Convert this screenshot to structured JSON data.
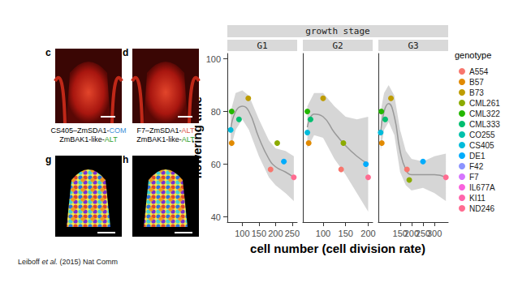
{
  "figure": {
    "panels": [
      {
        "label": "c",
        "caption": [
          [
            {
              "text": "CS405–ZmSDA1-"
            },
            {
              "text": "COM",
              "color": "#3a8fd8"
            }
          ],
          [
            {
              "text": "ZmBAK1-like-"
            },
            {
              "text": "ALT",
              "color": "#2ca02c"
            }
          ]
        ]
      },
      {
        "label": "d",
        "caption": [
          [
            {
              "text": "F7–ZmSDA1-"
            },
            {
              "text": "ALT",
              "color": "#e05a4f"
            }
          ],
          [
            {
              "text": "ZmBAK1-like-"
            },
            {
              "text": "ALT",
              "color": "#2ca02c"
            }
          ]
        ]
      },
      {
        "label": "g"
      },
      {
        "label": "h"
      }
    ],
    "citation": [
      {
        "text": "Leiboff "
      },
      {
        "text": "et al.",
        "style": "italic"
      },
      {
        "text": " (2015) Nat Comm"
      }
    ]
  },
  "chart_data": {
    "type": "scatter",
    "facet_title": "growth stage",
    "x_label": "cell number (cell division rate)",
    "y_label": "flowering time",
    "legend_title": "genotype",
    "legend": "right",
    "grid": false,
    "ylim": [
      38,
      102
    ],
    "yticks": [
      40,
      60,
      80,
      100
    ],
    "series": [
      {
        "name": "A554",
        "color": "#F8766D"
      },
      {
        "name": "B57",
        "color": "#E18A00"
      },
      {
        "name": "B73",
        "color": "#BE9C00"
      },
      {
        "name": "CML261",
        "color": "#8CAB00"
      },
      {
        "name": "CML322",
        "color": "#24B700"
      },
      {
        "name": "CML333",
        "color": "#00BE70"
      },
      {
        "name": "CO255",
        "color": "#00C1AB"
      },
      {
        "name": "CS405",
        "color": "#00BBDA"
      },
      {
        "name": "DE1",
        "color": "#00ACFC"
      },
      {
        "name": "F42",
        "color": "#8B93FF"
      },
      {
        "name": "F7",
        "color": "#D575FE"
      },
      {
        "name": "IL677A",
        "color": "#F962DD"
      },
      {
        "name": "KI11",
        "color": "#FF65AC"
      },
      {
        "name": "ND246",
        "color": "#FF6C91"
      }
    ],
    "facets": [
      {
        "title": "G1",
        "xlim": [
          55,
          265
        ],
        "xticks": [
          100,
          150,
          200,
          250
        ],
        "points": [
          {
            "series": "A554",
            "x": 185,
            "y": 58
          },
          {
            "series": "B57",
            "x": 68,
            "y": 68
          },
          {
            "series": "B73",
            "x": 118,
            "y": 85
          },
          {
            "series": "CML261",
            "x": 205,
            "y": 68
          },
          {
            "series": "CML322",
            "x": 68,
            "y": 80
          },
          {
            "series": "CML333",
            "x": 90,
            "y": 77
          },
          {
            "series": "CS405",
            "x": 65,
            "y": 73
          },
          {
            "series": "DE1",
            "x": 225,
            "y": 61
          },
          {
            "series": "ND246",
            "x": 255,
            "y": 55
          }
        ],
        "smooth": {
          "color": "#999999",
          "x": [
            65,
            80,
            100,
            120,
            150,
            180,
            200,
            230,
            255
          ],
          "y": [
            73,
            80,
            82,
            80,
            70,
            62,
            59,
            57,
            55
          ],
          "lower": [
            66,
            73,
            77,
            73,
            63,
            55,
            52,
            49,
            46
          ],
          "upper": [
            80,
            87,
            88,
            86,
            77,
            69,
            66,
            65,
            63
          ]
        }
      },
      {
        "title": "G2",
        "xlim": [
          55,
          210
        ],
        "xticks": [
          100,
          150,
          200
        ],
        "points": [
          {
            "series": "A554",
            "x": 140,
            "y": 58
          },
          {
            "series": "B57",
            "x": 68,
            "y": 68
          },
          {
            "series": "B73",
            "x": 100,
            "y": 85
          },
          {
            "series": "CML261",
            "x": 145,
            "y": 68
          },
          {
            "series": "CML322",
            "x": 65,
            "y": 80
          },
          {
            "series": "CML333",
            "x": 72,
            "y": 77
          },
          {
            "series": "CS405",
            "x": 65,
            "y": 72
          },
          {
            "series": "DE1",
            "x": 195,
            "y": 60
          },
          {
            "series": "ND246",
            "x": 200,
            "y": 55
          }
        ],
        "smooth": {
          "color": "#999999",
          "x": [
            65,
            80,
            100,
            125,
            150,
            175,
            200
          ],
          "y": [
            74,
            79,
            78,
            72,
            67,
            63,
            60
          ],
          "lower": [
            66,
            71,
            70,
            62,
            56,
            49,
            42
          ],
          "upper": [
            82,
            87,
            87,
            82,
            78,
            77,
            78
          ]
        }
      },
      {
        "title": "G3",
        "xlim": [
          55,
          360
        ],
        "xticks": [
          100,
          150,
          200,
          250,
          300,
          350
        ],
        "points": [
          {
            "series": "A554",
            "x": 180,
            "y": 58
          },
          {
            "series": "B57",
            "x": 70,
            "y": 68
          },
          {
            "series": "B73",
            "x": 110,
            "y": 85
          },
          {
            "series": "CML261",
            "x": 190,
            "y": 54
          },
          {
            "series": "CML322",
            "x": 68,
            "y": 80
          },
          {
            "series": "CML333",
            "x": 85,
            "y": 77
          },
          {
            "series": "CS405",
            "x": 65,
            "y": 72
          },
          {
            "series": "DE1",
            "x": 250,
            "y": 61
          },
          {
            "series": "ND246",
            "x": 350,
            "y": 55
          }
        ],
        "smooth": {
          "color": "#999999",
          "x": [
            65,
            80,
            100,
            125,
            150,
            175,
            200,
            250,
            300,
            350
          ],
          "y": [
            72,
            80,
            83,
            78,
            65,
            58,
            56,
            56,
            56,
            55
          ],
          "lower": [
            65,
            73,
            76,
            71,
            57,
            52,
            50,
            51,
            49,
            46
          ],
          "upper": [
            80,
            87,
            90,
            86,
            73,
            65,
            62,
            61,
            63,
            64
          ]
        }
      }
    ]
  }
}
